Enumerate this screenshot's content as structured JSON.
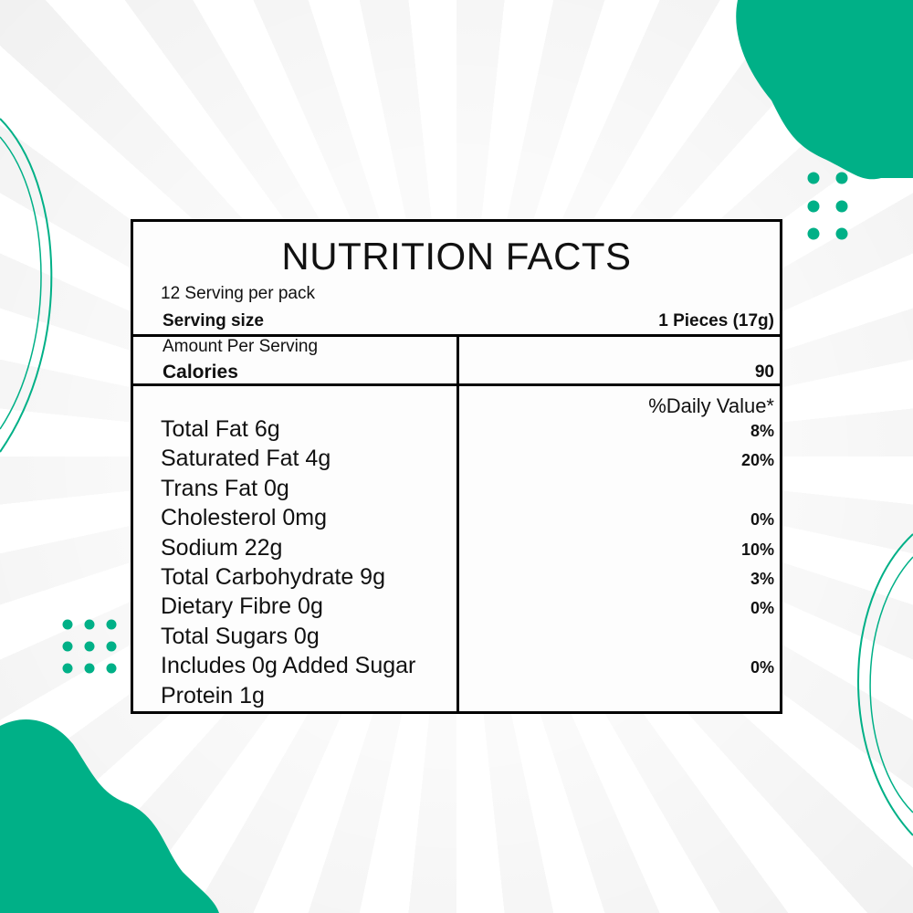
{
  "colors": {
    "accent": "#00b087",
    "border": "#000000"
  },
  "label": {
    "title": "NUTRITION FACTS",
    "servings_per_pack": "12 Serving per pack",
    "serving_size_label": "Serving size",
    "serving_size_value": "1 Pieces (17g)",
    "amount_per_serving": "Amount Per Serving",
    "calories_label": "Calories",
    "calories_value": "90",
    "daily_value_header": "%Daily Value*",
    "nutrients": [
      {
        "name": "Total Fat 6g",
        "dv": "8%"
      },
      {
        "name": "Saturated Fat 4g",
        "dv": "20%"
      },
      {
        "name": "Trans Fat 0g",
        "dv": ""
      },
      {
        "name": "Cholesterol 0mg",
        "dv": "0%"
      },
      {
        "name": "Sodium 22g",
        "dv": "10%"
      },
      {
        "name": "Total Carbohydrate 9g",
        "dv": "3%"
      },
      {
        "name": "Dietary Fibre 0g",
        "dv": "0%"
      },
      {
        "name": "Total Sugars 0g",
        "dv": ""
      },
      {
        "name": "Includes 0g Added Sugar",
        "dv": "0%"
      },
      {
        "name": "Protein 1g",
        "dv": ""
      }
    ]
  }
}
